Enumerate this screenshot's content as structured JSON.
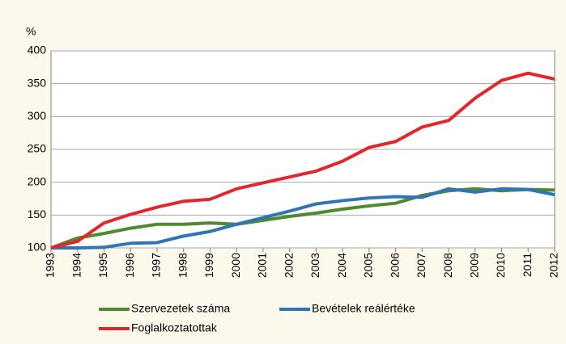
{
  "chart_data": {
    "type": "line",
    "y_label": "%",
    "categories": [
      "1993",
      "1994",
      "1995",
      "1996",
      "1997",
      "1998",
      "1999",
      "2000",
      "2001",
      "2002",
      "2003",
      "2004",
      "2005",
      "2006",
      "2007",
      "2008",
      "2009",
      "2010",
      "2011",
      "2012"
    ],
    "series": [
      {
        "name": "Szervezetek száma",
        "color": "#4e8a2e",
        "values": [
          100,
          115,
          122,
          130,
          136,
          136,
          138,
          136,
          142,
          148,
          153,
          159,
          164,
          168,
          180,
          187,
          190,
          187,
          189,
          188
        ]
      },
      {
        "name": "Bevételek reálértéke",
        "color": "#2e75b6",
        "values": [
          100,
          100,
          101,
          107,
          108,
          118,
          125,
          136,
          146,
          156,
          167,
          172,
          176,
          178,
          177,
          190,
          185,
          190,
          189,
          181
        ]
      },
      {
        "name": "Foglalkoztatottak",
        "color": "#e3262b",
        "values": [
          100,
          110,
          138,
          151,
          162,
          171,
          174,
          190,
          199,
          208,
          217,
          232,
          253,
          262,
          284,
          294,
          328,
          355,
          366,
          357
        ]
      }
    ],
    "ylim": [
      100,
      400
    ],
    "yticks": [
      100,
      150,
      200,
      250,
      300,
      350,
      400
    ],
    "grid": true
  }
}
